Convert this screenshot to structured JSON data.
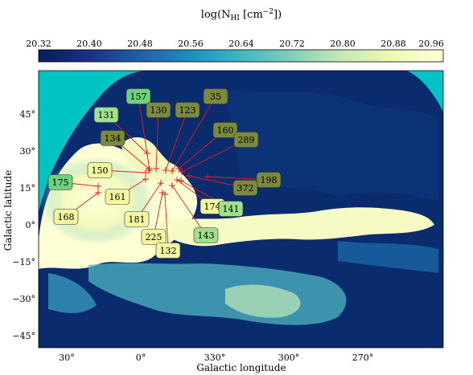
{
  "colorbar": {
    "label": "log(N",
    "label_sub": "HI",
    "label_unit": " [cm",
    "label_sup": "−2",
    "label_end": "])",
    "ticks": [
      "20.32",
      "20.40",
      "20.48",
      "20.56",
      "20.64",
      "20.72",
      "20.80",
      "20.88",
      "20.96"
    ],
    "colors": [
      "#081d58",
      "#23399a",
      "#1f79b5",
      "#3aa6c4",
      "#7fcdbb",
      "#c7e9b4",
      "#edf8b1",
      "#ffffd9"
    ]
  },
  "map": {
    "xlabel": "Galactic longitude",
    "ylabel": "Galactic latitude",
    "x_ticks": [
      "30°",
      "0°",
      "330°",
      "300°",
      "270°"
    ],
    "y_ticks": [
      "45°",
      "30°",
      "15°",
      "0°",
      "−15°",
      "−30°",
      "−45°"
    ],
    "outside_color": "#00c4c4",
    "sky_color": "#0a2b6e",
    "cloud_color": "#ffffd4"
  },
  "labels": [
    {
      "text": "157",
      "fill": "#6fd07e"
    },
    {
      "text": "130",
      "fill": "#7c8a3e"
    },
    {
      "text": "123",
      "fill": "#7c8a3e"
    },
    {
      "text": "35",
      "fill": "#7c8a3e"
    },
    {
      "text": "131",
      "fill": "#9fe08f"
    },
    {
      "text": "134",
      "fill": "#7c8a3e"
    },
    {
      "text": "160",
      "fill": "#7c8a3e"
    },
    {
      "text": "289",
      "fill": "#7c8a3e"
    },
    {
      "text": "175",
      "fill": "#6fd07e"
    },
    {
      "text": "150",
      "fill": "#f5f7a0"
    },
    {
      "text": "198",
      "fill": "#7c8a3e"
    },
    {
      "text": "161",
      "fill": "#f5f7a0"
    },
    {
      "text": "372",
      "fill": "#7c8a3e"
    },
    {
      "text": "174",
      "fill": "#f5f7a0"
    },
    {
      "text": "141",
      "fill": "#9fe08f"
    },
    {
      "text": "168",
      "fill": "#f5f7a0"
    },
    {
      "text": "181",
      "fill": "#f5f7a0"
    },
    {
      "text": "225",
      "fill": "#f5f7a0"
    },
    {
      "text": "143",
      "fill": "#9fe08f"
    },
    {
      "text": "132",
      "fill": "#f5f7a0"
    }
  ],
  "arrow_color": "#e02020"
}
